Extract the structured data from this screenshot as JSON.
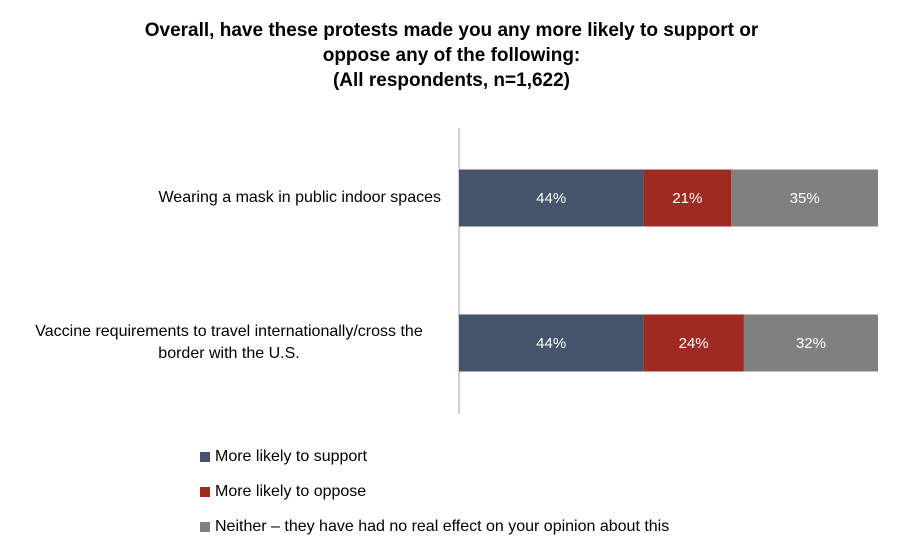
{
  "chart_data": {
    "type": "bar",
    "orientation": "horizontal",
    "stacked": true,
    "title": [
      "Overall, have these protests made you any more likely to support or",
      "oppose any of the following:",
      "(All respondents, n=1,622)"
    ],
    "categories": [
      [
        "Wearing a mask in public indoor spaces"
      ],
      [
        "Vaccine requirements to travel internationally/cross the",
        "border with the U.S."
      ]
    ],
    "series": [
      {
        "name": "More likely to support",
        "values": [
          44,
          44
        ],
        "labels": [
          "44%",
          "44%"
        ],
        "color": "#44546A"
      },
      {
        "name": "More likely to oppose",
        "values": [
          21,
          24
        ],
        "labels": [
          "21%",
          "24%"
        ],
        "color": "#9E2A22"
      },
      {
        "name": "Neither – they have had no real effect on your opinion about this",
        "values": [
          35,
          32
        ],
        "labels": [
          "35%",
          "32%"
        ],
        "color": "#808080"
      }
    ],
    "xlim": [
      0,
      100
    ],
    "grid": false,
    "legend_position": "bottom-left"
  }
}
